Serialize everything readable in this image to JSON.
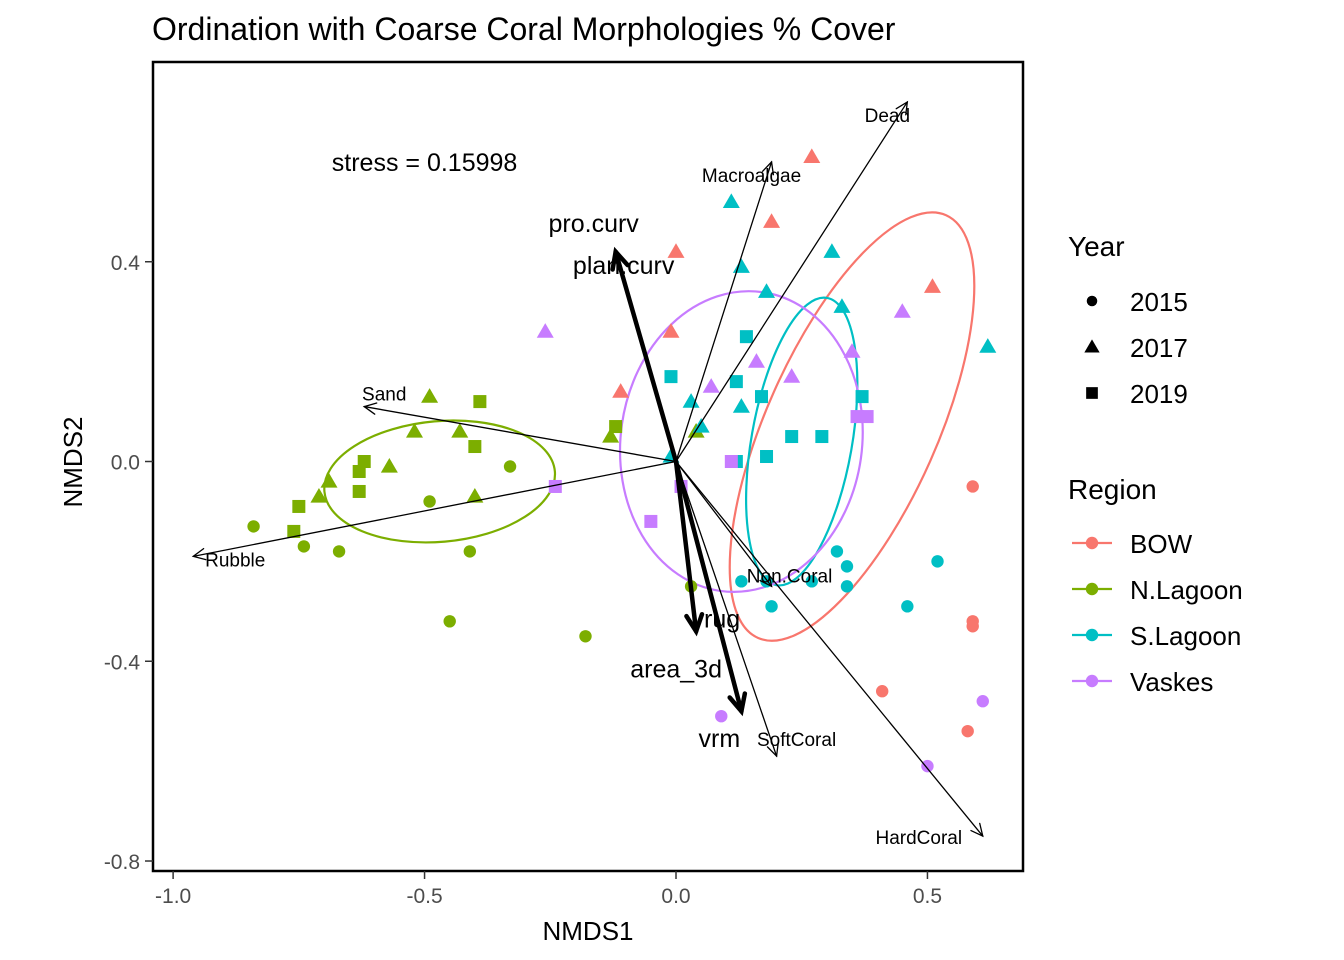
{
  "chart_data": {
    "type": "scatter",
    "title": "Ordination with Coarse Coral Morphologies % Cover",
    "xlabel": "NMDS1",
    "ylabel": "NMDS2",
    "xlim": [
      -1.04,
      0.69
    ],
    "ylim": [
      -0.82,
      0.8
    ],
    "xticks": [
      -1.0,
      -0.5,
      0.0,
      0.5
    ],
    "xtick_labels": [
      "-1.0",
      "-0.5",
      "0.0",
      "0.5"
    ],
    "yticks": [
      -0.8,
      -0.4,
      0.0,
      0.4
    ],
    "ytick_labels": [
      "-0.8",
      "-0.4",
      "0.0",
      "0.4"
    ],
    "grid": false,
    "legend_position": "right",
    "annotation": "stress = 0.15998",
    "legend_year": {
      "title": "Year",
      "items": [
        {
          "label": "2015",
          "shape": "circle"
        },
        {
          "label": "2017",
          "shape": "triangle"
        },
        {
          "label": "2019",
          "shape": "square"
        }
      ]
    },
    "legend_region": {
      "title": "Region",
      "items": [
        {
          "label": "BOW",
          "color": "#F8766D"
        },
        {
          "label": "N.Lagoon",
          "color": "#7CAE00"
        },
        {
          "label": "S.Lagoon",
          "color": "#00BFC4"
        },
        {
          "label": "Vaskes",
          "color": "#C77CFF"
        }
      ]
    },
    "series": [
      {
        "region": "BOW",
        "color": "#F8766D",
        "points": [
          {
            "x": 0.27,
            "y": 0.61,
            "shape": "triangle"
          },
          {
            "x": 0.19,
            "y": 0.48,
            "shape": "triangle"
          },
          {
            "x": 0.0,
            "y": 0.42,
            "shape": "triangle"
          },
          {
            "x": 0.51,
            "y": 0.35,
            "shape": "triangle"
          },
          {
            "x": -0.01,
            "y": 0.26,
            "shape": "triangle"
          },
          {
            "x": -0.11,
            "y": 0.14,
            "shape": "triangle"
          },
          {
            "x": 0.59,
            "y": -0.05,
            "shape": "circle"
          },
          {
            "x": 0.59,
            "y": -0.32,
            "shape": "circle"
          },
          {
            "x": 0.59,
            "y": -0.33,
            "shape": "circle"
          },
          {
            "x": 0.41,
            "y": -0.46,
            "shape": "circle"
          },
          {
            "x": 0.58,
            "y": -0.54,
            "shape": "circle"
          }
        ]
      },
      {
        "region": "N.Lagoon",
        "color": "#7CAE00",
        "points": [
          {
            "x": -0.49,
            "y": 0.13,
            "shape": "triangle"
          },
          {
            "x": -0.52,
            "y": 0.06,
            "shape": "triangle"
          },
          {
            "x": -0.43,
            "y": 0.06,
            "shape": "triangle"
          },
          {
            "x": -0.57,
            "y": -0.01,
            "shape": "triangle"
          },
          {
            "x": -0.69,
            "y": -0.04,
            "shape": "triangle"
          },
          {
            "x": -0.71,
            "y": -0.07,
            "shape": "triangle"
          },
          {
            "x": -0.4,
            "y": -0.07,
            "shape": "triangle"
          },
          {
            "x": -0.13,
            "y": 0.05,
            "shape": "triangle"
          },
          {
            "x": 0.04,
            "y": 0.06,
            "shape": "triangle"
          },
          {
            "x": -0.39,
            "y": 0.12,
            "shape": "square"
          },
          {
            "x": -0.12,
            "y": 0.07,
            "shape": "square"
          },
          {
            "x": -0.4,
            "y": 0.03,
            "shape": "square"
          },
          {
            "x": -0.62,
            "y": 0.0,
            "shape": "square"
          },
          {
            "x": -0.63,
            "y": -0.02,
            "shape": "square"
          },
          {
            "x": -0.63,
            "y": -0.06,
            "shape": "square"
          },
          {
            "x": -0.75,
            "y": -0.09,
            "shape": "square"
          },
          {
            "x": -0.76,
            "y": -0.14,
            "shape": "square"
          },
          {
            "x": -0.33,
            "y": -0.01,
            "shape": "circle"
          },
          {
            "x": -0.49,
            "y": -0.08,
            "shape": "circle"
          },
          {
            "x": -0.84,
            "y": -0.13,
            "shape": "circle"
          },
          {
            "x": -0.74,
            "y": -0.17,
            "shape": "circle"
          },
          {
            "x": -0.67,
            "y": -0.18,
            "shape": "circle"
          },
          {
            "x": -0.41,
            "y": -0.18,
            "shape": "circle"
          },
          {
            "x": -0.45,
            "y": -0.32,
            "shape": "circle"
          },
          {
            "x": -0.18,
            "y": -0.35,
            "shape": "circle"
          },
          {
            "x": 0.03,
            "y": -0.25,
            "shape": "circle"
          }
        ]
      },
      {
        "region": "S.Lagoon",
        "color": "#00BFC4",
        "points": [
          {
            "x": 0.11,
            "y": 0.52,
            "shape": "triangle"
          },
          {
            "x": 0.31,
            "y": 0.42,
            "shape": "triangle"
          },
          {
            "x": 0.13,
            "y": 0.39,
            "shape": "triangle"
          },
          {
            "x": 0.18,
            "y": 0.34,
            "shape": "triangle"
          },
          {
            "x": 0.33,
            "y": 0.31,
            "shape": "triangle"
          },
          {
            "x": 0.62,
            "y": 0.23,
            "shape": "triangle"
          },
          {
            "x": 0.03,
            "y": 0.12,
            "shape": "triangle"
          },
          {
            "x": 0.13,
            "y": 0.11,
            "shape": "triangle"
          },
          {
            "x": 0.05,
            "y": 0.07,
            "shape": "triangle"
          },
          {
            "x": -0.01,
            "y": 0.01,
            "shape": "triangle"
          },
          {
            "x": 0.14,
            "y": 0.25,
            "shape": "square"
          },
          {
            "x": -0.01,
            "y": 0.17,
            "shape": "square"
          },
          {
            "x": 0.12,
            "y": 0.16,
            "shape": "square"
          },
          {
            "x": 0.17,
            "y": 0.13,
            "shape": "square"
          },
          {
            "x": 0.37,
            "y": 0.13,
            "shape": "square"
          },
          {
            "x": 0.29,
            "y": 0.05,
            "shape": "square"
          },
          {
            "x": 0.23,
            "y": 0.05,
            "shape": "square"
          },
          {
            "x": 0.18,
            "y": 0.01,
            "shape": "square"
          },
          {
            "x": 0.12,
            "y": 0.0,
            "shape": "square"
          },
          {
            "x": 0.32,
            "y": -0.18,
            "shape": "circle"
          },
          {
            "x": 0.52,
            "y": -0.2,
            "shape": "circle"
          },
          {
            "x": 0.34,
            "y": -0.21,
            "shape": "circle"
          },
          {
            "x": 0.13,
            "y": -0.24,
            "shape": "circle"
          },
          {
            "x": 0.18,
            "y": -0.24,
            "shape": "circle"
          },
          {
            "x": 0.27,
            "y": -0.24,
            "shape": "circle"
          },
          {
            "x": 0.34,
            "y": -0.25,
            "shape": "circle"
          },
          {
            "x": 0.46,
            "y": -0.29,
            "shape": "circle"
          },
          {
            "x": 0.19,
            "y": -0.29,
            "shape": "circle"
          }
        ]
      },
      {
        "region": "Vaskes",
        "color": "#C77CFF",
        "points": [
          {
            "x": -0.26,
            "y": 0.26,
            "shape": "triangle"
          },
          {
            "x": 0.45,
            "y": 0.3,
            "shape": "triangle"
          },
          {
            "x": 0.35,
            "y": 0.22,
            "shape": "triangle"
          },
          {
            "x": 0.16,
            "y": 0.2,
            "shape": "triangle"
          },
          {
            "x": 0.23,
            "y": 0.17,
            "shape": "triangle"
          },
          {
            "x": 0.07,
            "y": 0.15,
            "shape": "triangle"
          },
          {
            "x": 0.38,
            "y": 0.09,
            "shape": "square"
          },
          {
            "x": 0.36,
            "y": 0.09,
            "shape": "square"
          },
          {
            "x": 0.11,
            "y": 0.0,
            "shape": "square"
          },
          {
            "x": -0.24,
            "y": -0.05,
            "shape": "square"
          },
          {
            "x": 0.01,
            "y": -0.05,
            "shape": "square"
          },
          {
            "x": -0.05,
            "y": -0.12,
            "shape": "square"
          },
          {
            "x": 0.61,
            "y": -0.48,
            "shape": "circle"
          },
          {
            "x": 0.09,
            "y": -0.51,
            "shape": "circle"
          },
          {
            "x": 0.5,
            "y": -0.61,
            "shape": "circle"
          }
        ]
      }
    ],
    "ellipses": [
      {
        "region": "BOW",
        "cx": 0.35,
        "cy": 0.07,
        "rx": 0.46,
        "ry": 0.17,
        "angle_deg": 66
      },
      {
        "region": "N.Lagoon",
        "cx": -0.47,
        "cy": -0.04,
        "rx": 0.23,
        "ry": 0.12,
        "angle_deg": 5
      },
      {
        "region": "S.Lagoon",
        "cx": 0.25,
        "cy": 0.04,
        "rx": 0.29,
        "ry": 0.1,
        "angle_deg": 80
      },
      {
        "region": "Vaskes",
        "cx": 0.13,
        "cy": 0.04,
        "rx": 0.3,
        "ry": 0.24,
        "angle_deg": 82
      }
    ],
    "species_vectors": [
      {
        "label": "Dead",
        "x": 0.46,
        "y": 0.72
      },
      {
        "label": "Macroalgae",
        "x": 0.19,
        "y": 0.6
      },
      {
        "label": "Sand",
        "x": -0.62,
        "y": 0.11
      },
      {
        "label": "Rubble",
        "x": -0.96,
        "y": -0.19
      },
      {
        "label": "Non.Coral",
        "x": 0.19,
        "y": -0.25
      },
      {
        "label": "SoftCoral",
        "x": 0.2,
        "y": -0.59
      },
      {
        "label": "HardCoral",
        "x": 0.61,
        "y": -0.75
      }
    ],
    "env_vectors": [
      {
        "label": "pro.curv",
        "x": -0.12,
        "y": 0.42
      },
      {
        "label": "plan.curv",
        "x": -0.12,
        "y": 0.42
      },
      {
        "label": "rug",
        "x": 0.04,
        "y": -0.34
      },
      {
        "label": "area_3d",
        "x": 0.04,
        "y": -0.34
      },
      {
        "label": "vrm",
        "x": 0.13,
        "y": -0.5
      }
    ]
  }
}
